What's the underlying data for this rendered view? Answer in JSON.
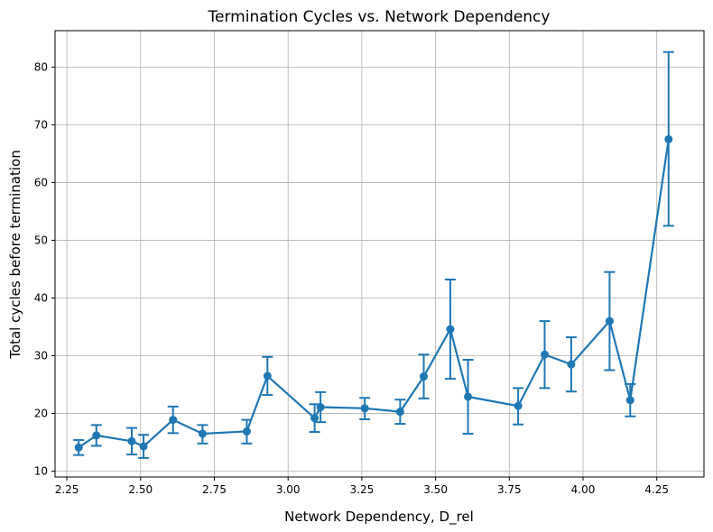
{
  "chart_data": {
    "type": "line",
    "title": "Termination Cycles vs. Network Dependency",
    "xlabel": "Network Dependency, D_rel",
    "ylabel": "Total cycles before termination",
    "xlim": [
      2.21,
      4.41
    ],
    "ylim": [
      9.0,
      86.3
    ],
    "xticks": [
      2.25,
      2.5,
      2.75,
      3.0,
      3.25,
      3.5,
      3.75,
      4.0,
      4.25
    ],
    "xtick_labels": [
      "2.25",
      "2.50",
      "2.75",
      "3.00",
      "3.25",
      "3.50",
      "3.75",
      "4.00",
      "4.25"
    ],
    "yticks": [
      10,
      20,
      30,
      40,
      50,
      60,
      70,
      80
    ],
    "ytick_labels": [
      "10",
      "20",
      "30",
      "40",
      "50",
      "60",
      "70",
      "80"
    ],
    "grid": true,
    "color": "#1f77b4",
    "series": [
      {
        "x": [
          2.29,
          2.35,
          2.47,
          2.51,
          2.61,
          2.71,
          2.86,
          2.93,
          3.09,
          3.11,
          3.26,
          3.38,
          3.46,
          3.55,
          3.61,
          3.78,
          3.87,
          3.96,
          4.09,
          4.16,
          4.29
        ],
        "y": [
          14.1,
          16.2,
          15.2,
          14.3,
          18.9,
          16.5,
          16.9,
          26.5,
          19.2,
          21.1,
          20.9,
          20.3,
          26.4,
          34.6,
          22.9,
          21.3,
          30.2,
          28.5,
          36.0,
          22.3,
          67.5
        ],
        "err_low": [
          12.8,
          14.4,
          12.9,
          12.3,
          16.6,
          14.8,
          14.8,
          23.2,
          16.8,
          18.5,
          19.0,
          18.2,
          22.6,
          26.0,
          16.5,
          18.1,
          24.4,
          23.8,
          27.5,
          19.5,
          52.5
        ],
        "err_high": [
          15.4,
          18.0,
          17.5,
          16.3,
          21.2,
          18.0,
          18.9,
          29.8,
          21.6,
          23.7,
          22.7,
          22.4,
          30.2,
          43.2,
          29.3,
          24.4,
          36.0,
          33.2,
          44.5,
          25.1,
          82.6
        ]
      }
    ]
  }
}
